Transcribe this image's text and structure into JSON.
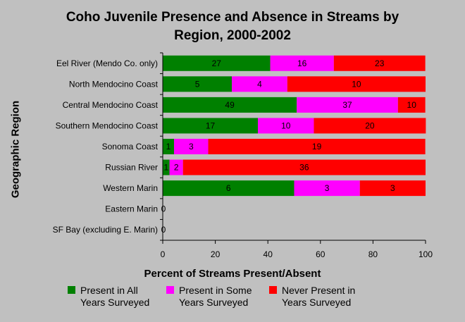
{
  "chart_data": {
    "type": "bar",
    "stacked": true,
    "orientation": "horizontal",
    "title": "Coho Juvenile Presence and Absence in Streams by Region, 2000-2002",
    "title_lines": [
      "Coho Juvenile Presence and Absence in Streams by",
      "Region, 2000-2002"
    ],
    "xlabel": "Percent of Streams Present/Absent",
    "ylabel": "Geographic Region",
    "xlim": [
      0,
      100
    ],
    "xticks": [
      0,
      20,
      40,
      60,
      80,
      100
    ],
    "grid": false,
    "legend_position": "bottom",
    "categories": [
      "Eel River (Mendo Co. only)",
      "North Mendocino Coast",
      "Central Mendocino Coast",
      "Southern Mendocino Coast",
      "Sonoma Coast",
      "Russian River",
      "Western Marin",
      "Eastern Marin",
      "SF Bay (excluding E. Marin)"
    ],
    "series": [
      {
        "name": "Present in All Years Surveyed",
        "legend_lines": [
          "Present in All",
          "Years Surveyed"
        ],
        "color": "#008000",
        "counts": [
          27,
          5,
          49,
          17,
          1,
          1,
          6,
          0,
          0
        ],
        "percent": [
          40.9,
          26.3,
          51.0,
          36.2,
          4.3,
          2.6,
          50.0,
          0,
          0
        ]
      },
      {
        "name": "Present in Some Years Surveyed",
        "legend_lines": [
          "Present in Some",
          "Years Surveyed"
        ],
        "color": "#ff00ff",
        "counts": [
          16,
          4,
          37,
          10,
          3,
          2,
          3,
          0,
          0
        ],
        "percent": [
          24.2,
          21.1,
          38.5,
          21.3,
          13.0,
          5.1,
          25.0,
          0,
          0
        ]
      },
      {
        "name": "Never Present in Years Surveyed",
        "legend_lines": [
          "Never Present in",
          "Years Surveyed"
        ],
        "color": "#ff0000",
        "counts": [
          23,
          10,
          10,
          20,
          19,
          36,
          3,
          0,
          0
        ],
        "percent": [
          34.8,
          52.6,
          10.4,
          42.6,
          82.6,
          92.3,
          25.0,
          0,
          0
        ]
      }
    ],
    "zero_labels": [
      "0",
      "0"
    ]
  }
}
